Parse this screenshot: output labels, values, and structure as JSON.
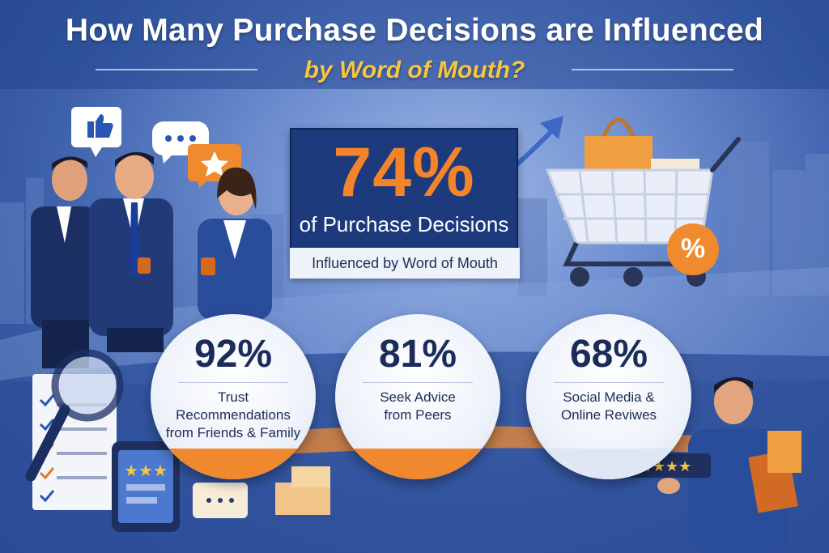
{
  "title": {
    "line1": "How Many Purchase Decisions are Influenced",
    "line2": "by Word of Mouth?"
  },
  "hero": {
    "value": "74%",
    "label": "of Purchase Decisions",
    "sublabel": "Influenced by Word of Mouth"
  },
  "stats": [
    {
      "value": "92%",
      "line1": "Trust Recommendations",
      "line2": "from Friends & Family"
    },
    {
      "value": "81%",
      "line1": "Seek Advice",
      "line2": "from Peers"
    },
    {
      "value": "68%",
      "line1": "Social Media &",
      "line2": "Online Reviwes"
    }
  ],
  "colors": {
    "navy": "#1d3a7c",
    "orange": "#f4842a",
    "gold": "#f7c640",
    "white": "#ffffff"
  },
  "icons": {
    "thumbs_up_bubble": "thumbs-up-icon",
    "ellipsis_bubble": "ellipsis-icon",
    "star_bubble": "star-icon",
    "cart": "shopping-cart-icon",
    "percent_tag": "percent-icon",
    "magnifier": "magnifier-icon"
  },
  "cart_badge": "%"
}
